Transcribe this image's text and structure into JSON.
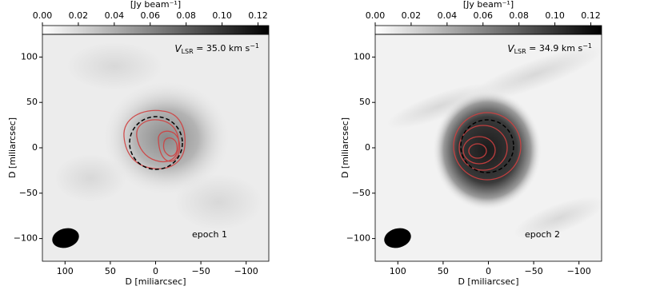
{
  "chart_data": [
    {
      "type": "image",
      "colorbar": {
        "label": "[Jy beam⁻¹]",
        "lim": [
          0,
          0.126
        ],
        "ticks": [
          {
            "value": 0,
            "label": "0.00"
          },
          {
            "value": 0.02,
            "label": "0.02"
          },
          {
            "value": 0.04,
            "label": "0.04"
          },
          {
            "value": 0.06,
            "label": "0.06"
          },
          {
            "value": 0.08,
            "label": "0.08"
          },
          {
            "value": 0.1,
            "label": "0.10"
          },
          {
            "value": 0.12,
            "label": "0.12"
          }
        ]
      },
      "xlabel": "D [miliarcsec]",
      "ylabel": "D [miliarcsec]",
      "xlim": [
        125,
        -125
      ],
      "ylim": [
        -125,
        125
      ],
      "xticks": [
        100,
        50,
        0,
        {
          "value": -50,
          "label": "−50"
        },
        {
          "value": -100,
          "label": "−100"
        }
      ],
      "yticks": [
        {
          "value": -100,
          "label": "−100"
        },
        {
          "value": -50,
          "label": "−50"
        },
        0,
        50,
        100
      ],
      "velocity": {
        "symbol": "V",
        "subscript": "LSR",
        "text": " = 35.0 km s",
        "superscript": "−1"
      },
      "epoch": "epoch 1"
    },
    {
      "type": "image",
      "colorbar": {
        "label": "[Jy beam⁻¹]",
        "lim": [
          0,
          0.126
        ],
        "ticks": [
          {
            "value": 0,
            "label": "0.00"
          },
          {
            "value": 0.02,
            "label": "0.02"
          },
          {
            "value": 0.04,
            "label": "0.04"
          },
          {
            "value": 0.06,
            "label": "0.06"
          },
          {
            "value": 0.08,
            "label": "0.08"
          },
          {
            "value": 0.1,
            "label": "0.10"
          },
          {
            "value": 0.12,
            "label": "0.12"
          }
        ]
      },
      "xlabel": "D [miliarcsec]",
      "ylabel": "D [miliarcsec]",
      "xlim": [
        125,
        -125
      ],
      "ylim": [
        -125,
        125
      ],
      "xticks": [
        100,
        50,
        0,
        {
          "value": -50,
          "label": "−50"
        },
        {
          "value": -100,
          "label": "−100"
        }
      ],
      "yticks": [
        {
          "value": -100,
          "label": "−100"
        },
        {
          "value": -50,
          "label": "−50"
        },
        0,
        50,
        100
      ],
      "velocity": {
        "symbol": "V",
        "subscript": "LSR",
        "text": " = 34.9 km s",
        "superscript": "−1"
      },
      "epoch": "epoch 2"
    }
  ]
}
